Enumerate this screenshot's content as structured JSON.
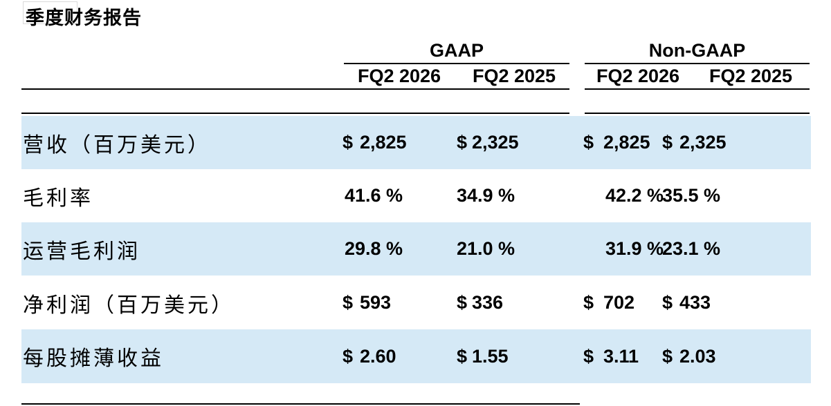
{
  "title": "季度财务报告",
  "table": {
    "groups": [
      {
        "label": "GAAP",
        "columns": [
          "FQ2 2026",
          "FQ2 2025"
        ]
      },
      {
        "label": "Non-GAAP",
        "columns": [
          "FQ2 2026",
          "FQ2 2025"
        ]
      }
    ],
    "rows": [
      {
        "label": "营收（百万美元）",
        "highlight": true,
        "cells": [
          {
            "dollar": "$",
            "value": "2,825"
          },
          {
            "dollar": "$",
            "value": "2,325"
          },
          {
            "dollar": "$",
            "value": "2,825"
          },
          {
            "dollar": "$",
            "value": "2,325"
          }
        ]
      },
      {
        "label": "毛利率",
        "highlight": false,
        "cells": [
          {
            "value": "41.6 %"
          },
          {
            "value": "34.9 %"
          },
          {
            "value": "42.2 %"
          },
          {
            "value": "35.5 %"
          }
        ]
      },
      {
        "label": "运营毛利润",
        "highlight": true,
        "cells": [
          {
            "value": "29.8 %"
          },
          {
            "value": "21.0 %"
          },
          {
            "value": "31.9 %"
          },
          {
            "value": "23.1 %"
          }
        ]
      },
      {
        "label": "净利润（百万美元）",
        "highlight": false,
        "cells": [
          {
            "dollar": "$",
            "value": "593"
          },
          {
            "dollar": "$",
            "value": "336"
          },
          {
            "dollar": "$",
            "value": "702"
          },
          {
            "dollar": "$",
            "value": "433"
          }
        ]
      },
      {
        "label": "每股摊薄收益",
        "highlight": true,
        "cells": [
          {
            "dollar": "$",
            "value": "2.60"
          },
          {
            "dollar": "$",
            "value": "1.55"
          },
          {
            "dollar": "$",
            "value": "3.11"
          },
          {
            "dollar": "$",
            "value": "2.03"
          }
        ]
      }
    ]
  },
  "chart_data": {
    "type": "table",
    "title": "季度财务报告",
    "column_groups": [
      "GAAP",
      "GAAP",
      "Non-GAAP",
      "Non-GAAP"
    ],
    "columns": [
      "FQ2 2026",
      "FQ2 2025",
      "FQ2 2026",
      "FQ2 2025"
    ],
    "rows": [
      [
        "营收（百万美元）",
        "$ 2,825",
        "$ 2,325",
        "$ 2,825",
        "$ 2,325"
      ],
      [
        "毛利率",
        "41.6 %",
        "34.9 %",
        "42.2 %",
        "35.5 %"
      ],
      [
        "运营毛利润",
        "29.8 %",
        "21.0 %",
        "31.9 %",
        "23.1 %"
      ],
      [
        "净利润（百万美元）",
        "$ 593",
        "$ 336",
        "$ 702",
        "$ 433"
      ],
      [
        "每股摊薄收益",
        "$ 2.60",
        "$ 1.55",
        "$ 3.11",
        "$ 2.03"
      ]
    ]
  },
  "colors": {
    "row_highlight": "#d5e9f6",
    "rule": "#000000",
    "text": "#000000"
  }
}
